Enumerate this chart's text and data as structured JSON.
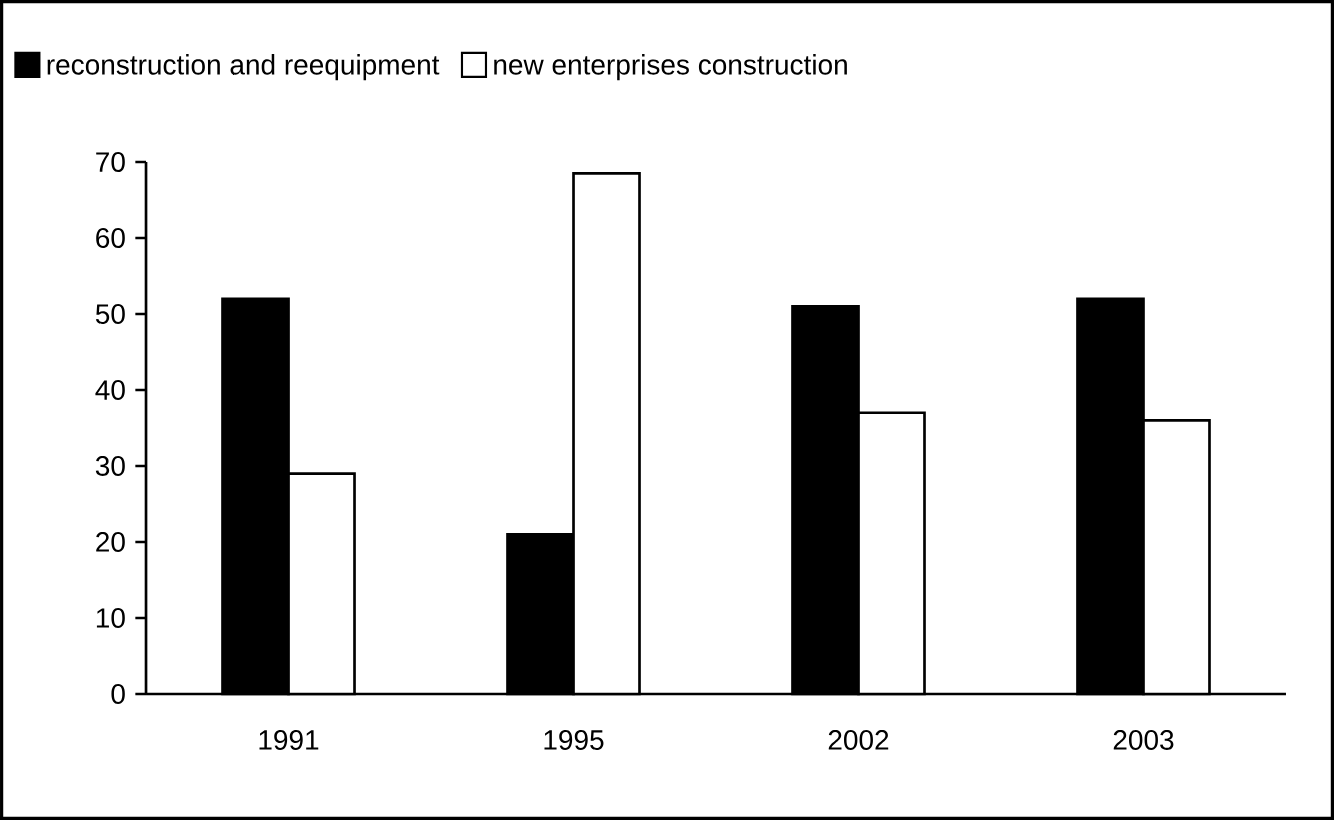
{
  "chart_data": {
    "type": "bar",
    "categories": [
      "1991",
      "1995",
      "2002",
      "2003"
    ],
    "series": [
      {
        "name": "reconstruction and reequipment",
        "color": "#000000",
        "values": [
          52,
          21,
          51,
          52
        ]
      },
      {
        "name": "new enterprises construction",
        "color": "#ffffff",
        "values": [
          29,
          68.5,
          37,
          36
        ]
      }
    ],
    "ylim": [
      0,
      70
    ],
    "yticks": [
      0,
      10,
      20,
      30,
      40,
      50,
      60,
      70
    ],
    "legend": "top",
    "grid": false
  }
}
